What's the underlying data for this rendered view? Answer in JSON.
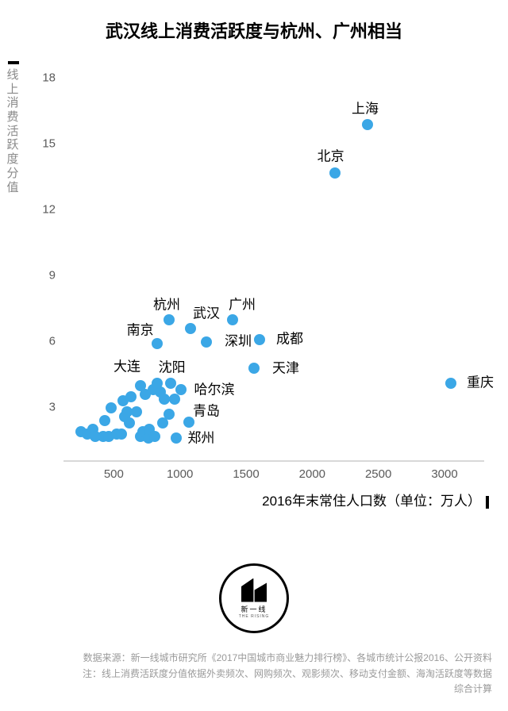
{
  "title": "武汉线上消费活跃度与杭州、广州相当",
  "title_fontsize": 22,
  "title_color": "#000000",
  "chart": {
    "type": "scatter",
    "background_color": "#ffffff",
    "grid_color": "#e0e0e0",
    "axis_color": "#d8d8d8",
    "tick_fontsize": 15,
    "tick_color": "#5a5a5a",
    "label_fontsize": 17,
    "label_color": "#000000",
    "xlim": [
      120,
      3300
    ],
    "ylim": [
      1.2,
      19.2
    ],
    "x_ticks": [
      500,
      1000,
      1500,
      2000,
      2500,
      3000
    ],
    "y_ticks": [
      3,
      6,
      9,
      12,
      15,
      18
    ],
    "y_axis_title": "线上消费活跃度分值",
    "y_axis_title_fontsize": 15,
    "y_axis_title_color": "#8a8a8a",
    "x_axis_title": "2016年末常住人口数（单位：万人）",
    "x_axis_title_fontsize": 17,
    "x_axis_title_color": "#000000",
    "dot_size": 14,
    "main_color": "#3ba7e6",
    "dark_color": "#1f77b4",
    "labeled_points": [
      {
        "name": "上海",
        "x": 2420,
        "y": 16.5,
        "lx": 2400,
        "ly": 17.3
      },
      {
        "name": "北京",
        "x": 2170,
        "y": 14.3,
        "lx": 2140,
        "ly": 15.1
      },
      {
        "name": "杭州",
        "x": 920,
        "y": 7.6,
        "lx": 900,
        "ly": 8.35
      },
      {
        "name": "武汉",
        "x": 1080,
        "y": 7.2,
        "lx": 1200,
        "ly": 7.95
      },
      {
        "name": "广州",
        "x": 1400,
        "y": 7.6,
        "lx": 1470,
        "ly": 8.35
      },
      {
        "name": "深圳",
        "x": 1200,
        "y": 6.6,
        "lx": 1440,
        "ly": 6.7
      },
      {
        "name": "成都",
        "x": 1600,
        "y": 6.7,
        "lx": 1830,
        "ly": 6.8
      },
      {
        "name": "南京",
        "x": 830,
        "y": 6.5,
        "lx": 700,
        "ly": 7.2
      },
      {
        "name": "天津",
        "x": 1560,
        "y": 5.4,
        "lx": 1800,
        "ly": 5.45
      },
      {
        "name": "重庆",
        "x": 3050,
        "y": 4.7,
        "lx": 3270,
        "ly": 4.8
      },
      {
        "name": "大连",
        "x": 700,
        "y": 4.6,
        "lx": 600,
        "ly": 5.55
      },
      {
        "name": "沈阳",
        "x": 830,
        "y": 4.7,
        "lx": 940,
        "ly": 5.5
      },
      {
        "name": "哈尔滨",
        "x": 960,
        "y": 4.0,
        "lx": 1260,
        "ly": 4.5
      },
      {
        "name": "青岛",
        "x": 920,
        "y": 3.3,
        "lx": 1200,
        "ly": 3.5
      },
      {
        "name": "郑州",
        "x": 970,
        "y": 2.2,
        "lx": 1160,
        "ly": 2.3
      }
    ],
    "unlabeled_points": [
      {
        "x": 250,
        "y": 2.5
      },
      {
        "x": 300,
        "y": 2.4
      },
      {
        "x": 340,
        "y": 2.6
      },
      {
        "x": 360,
        "y": 2.3
      },
      {
        "x": 420,
        "y": 2.3
      },
      {
        "x": 430,
        "y": 3.0
      },
      {
        "x": 460,
        "y": 2.3
      },
      {
        "x": 480,
        "y": 3.6
      },
      {
        "x": 520,
        "y": 2.4
      },
      {
        "x": 560,
        "y": 2.4
      },
      {
        "x": 570,
        "y": 3.9
      },
      {
        "x": 580,
        "y": 3.2
      },
      {
        "x": 600,
        "y": 3.4
      },
      {
        "x": 620,
        "y": 2.9
      },
      {
        "x": 630,
        "y": 4.1
      },
      {
        "x": 670,
        "y": 3.4
      },
      {
        "x": 700,
        "y": 2.3
      },
      {
        "x": 720,
        "y": 2.5
      },
      {
        "x": 740,
        "y": 4.2
      },
      {
        "x": 760,
        "y": 2.2
      },
      {
        "x": 770,
        "y": 2.6
      },
      {
        "x": 800,
        "y": 4.4
      },
      {
        "x": 810,
        "y": 2.3
      },
      {
        "x": 850,
        "y": 4.3
      },
      {
        "x": 870,
        "y": 2.9
      },
      {
        "x": 880,
        "y": 4.0
      },
      {
        "x": 930,
        "y": 4.7
      },
      {
        "x": 1010,
        "y": 4.4
      },
      {
        "x": 1070,
        "y": 2.95
      }
    ]
  },
  "logo": {
    "brand_cn": "新一线",
    "brand_en": "THE RISING"
  },
  "footer": {
    "line1": "数据来源：新一线城市研究所《2017中国城市商业魅力排行榜》、各城市统计公报2016、公开资料",
    "line2": "注：线上消费活跃度分值依据外卖频次、网购频次、观影频次、移动支付金额、海淘活跃度等数据",
    "line3": "综合计算",
    "fontsize": 12,
    "color": "#9a9a9a"
  }
}
